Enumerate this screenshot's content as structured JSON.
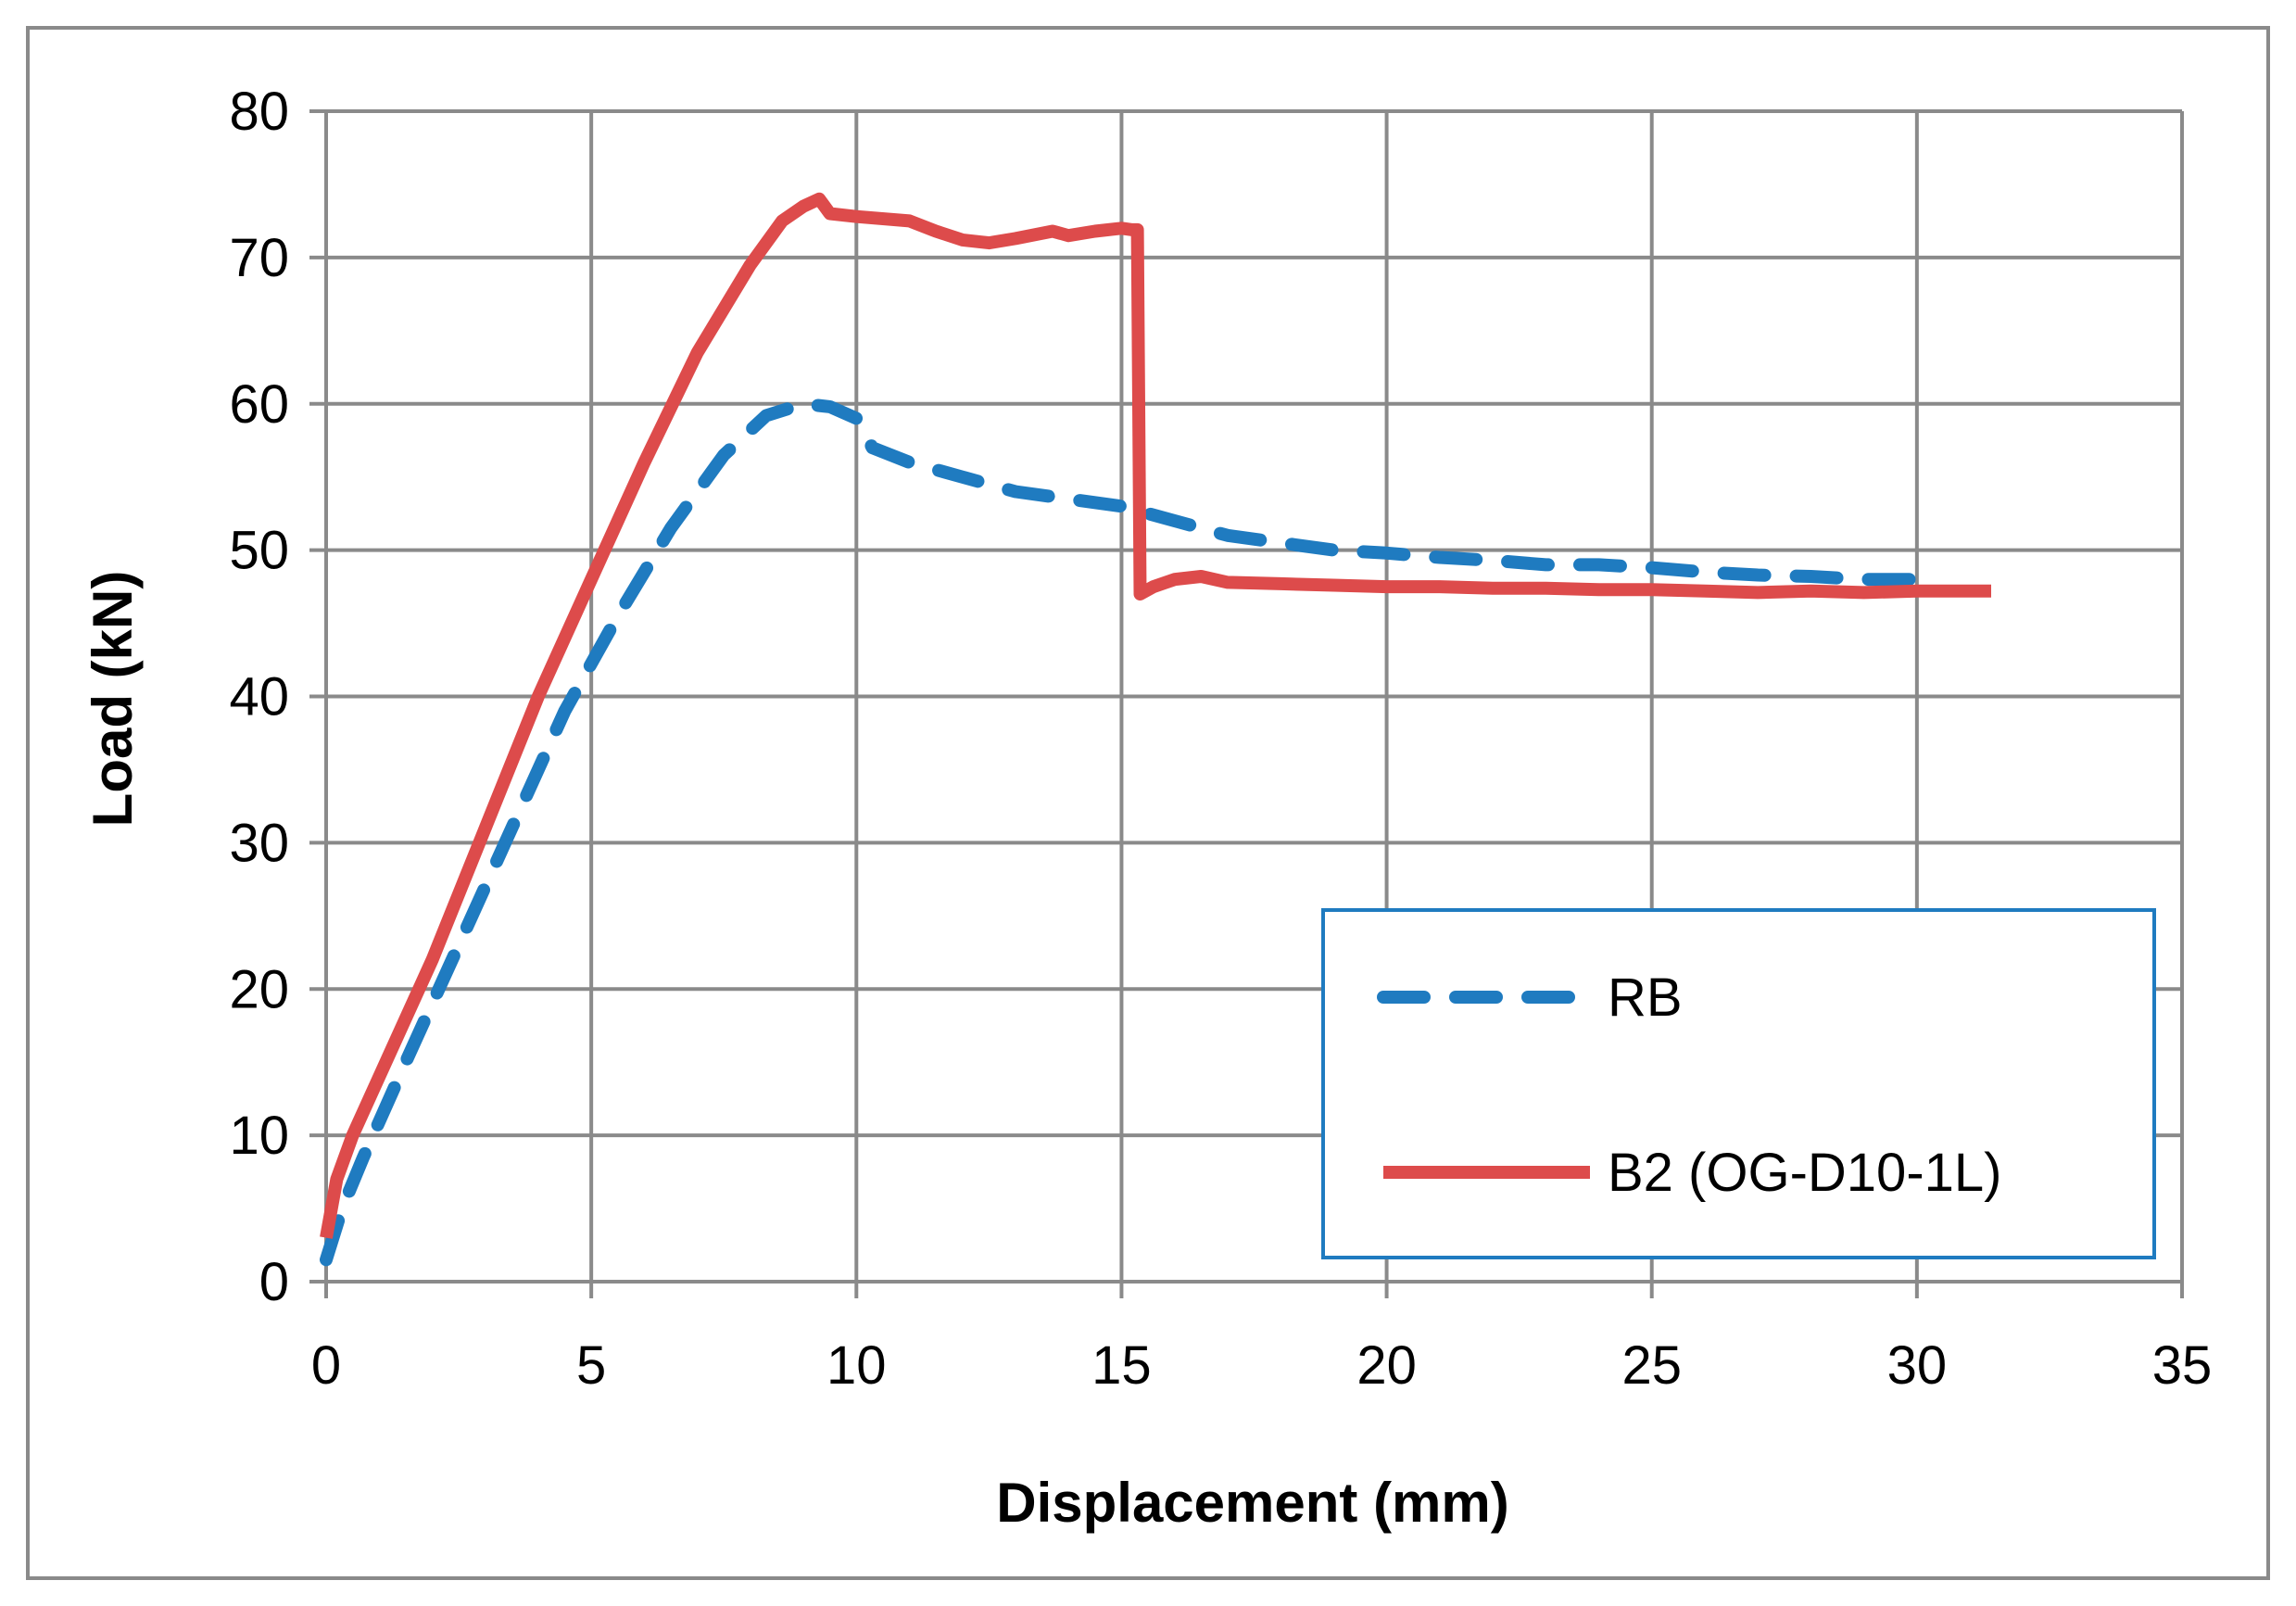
{
  "chart_data": {
    "type": "line",
    "title": "",
    "xlabel": "Displacement (mm)",
    "ylabel": "Load (kN)",
    "xlim": [
      0,
      35
    ],
    "ylim": [
      0,
      80
    ],
    "xticks": [
      "0",
      "5",
      "10",
      "15",
      "20",
      "25",
      "30",
      "35"
    ],
    "yticks": [
      "0",
      "10",
      "20",
      "30",
      "40",
      "50",
      "60",
      "70",
      "80"
    ],
    "grid": true,
    "legend_position": "lower-right",
    "series": [
      {
        "name": "RB",
        "color": "#1f7bc0",
        "style": "dashed",
        "points": [
          [
            0,
            1.5
          ],
          [
            0.3,
            5
          ],
          [
            0.7,
            8.5
          ],
          [
            1.5,
            15
          ],
          [
            2.5,
            23
          ],
          [
            3.5,
            31
          ],
          [
            4.5,
            39
          ],
          [
            5.5,
            45.5
          ],
          [
            6.5,
            51.5
          ],
          [
            7.5,
            56.5
          ],
          [
            8.3,
            59.2
          ],
          [
            9,
            60
          ],
          [
            9.5,
            59.8
          ],
          [
            10,
            59
          ],
          [
            10.3,
            57
          ],
          [
            11,
            56
          ],
          [
            12,
            55
          ],
          [
            13,
            54
          ],
          [
            14,
            53.5
          ],
          [
            15,
            53
          ],
          [
            16,
            52
          ],
          [
            17,
            51
          ],
          [
            18,
            50.5
          ],
          [
            19,
            50
          ],
          [
            20,
            49.8
          ],
          [
            21,
            49.5
          ],
          [
            22,
            49.3
          ],
          [
            23,
            49
          ],
          [
            24,
            49
          ],
          [
            25,
            48.8
          ],
          [
            26,
            48.5
          ],
          [
            27,
            48.3
          ],
          [
            28,
            48.2
          ],
          [
            29,
            48
          ],
          [
            30,
            48
          ],
          [
            30.2,
            47.8
          ]
        ]
      },
      {
        "name": "B2 (OG-D10-1L)",
        "color": "#dd4b4b",
        "style": "solid",
        "points": [
          [
            0,
            3
          ],
          [
            0.2,
            7
          ],
          [
            0.5,
            10
          ],
          [
            1,
            14
          ],
          [
            2,
            22
          ],
          [
            3,
            31
          ],
          [
            4,
            40
          ],
          [
            5,
            48
          ],
          [
            6,
            56
          ],
          [
            7,
            63.5
          ],
          [
            8,
            69.5
          ],
          [
            8.6,
            72.5
          ],
          [
            9,
            73.5
          ],
          [
            9.3,
            74
          ],
          [
            9.5,
            73
          ],
          [
            10,
            72.8
          ],
          [
            11,
            72.5
          ],
          [
            11.5,
            71.8
          ],
          [
            12,
            71.2
          ],
          [
            12.5,
            71
          ],
          [
            13,
            71.3
          ],
          [
            13.7,
            71.8
          ],
          [
            14,
            71.5
          ],
          [
            14.5,
            71.8
          ],
          [
            15,
            72
          ],
          [
            15.2,
            71.9
          ],
          [
            15.3,
            71.9
          ],
          [
            15.35,
            47
          ],
          [
            15.6,
            47.5
          ],
          [
            16,
            48
          ],
          [
            16.5,
            48.2
          ],
          [
            17,
            47.8
          ],
          [
            18,
            47.7
          ],
          [
            19,
            47.6
          ],
          [
            20,
            47.5
          ],
          [
            21,
            47.5
          ],
          [
            22,
            47.4
          ],
          [
            23,
            47.4
          ],
          [
            24,
            47.3
          ],
          [
            25,
            47.3
          ],
          [
            26,
            47.2
          ],
          [
            27,
            47.1
          ],
          [
            28,
            47.2
          ],
          [
            29,
            47.1
          ],
          [
            30,
            47.2
          ],
          [
            31,
            47.2
          ],
          [
            31.4,
            47.2
          ]
        ]
      }
    ]
  }
}
